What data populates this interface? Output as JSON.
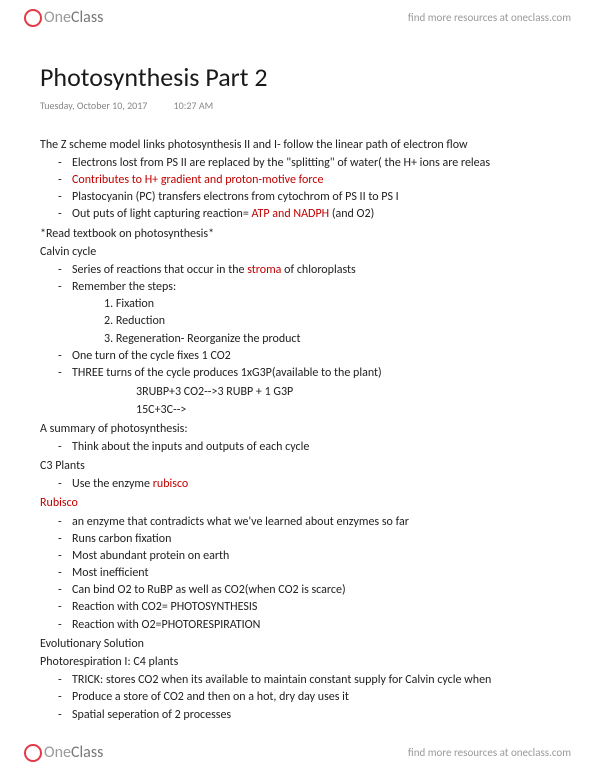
{
  "brand": {
    "logo_prefix": "One",
    "logo_suffix": "Class",
    "resources_text": "find more resources at oneclass.com"
  },
  "doc": {
    "title": "Photosynthesis Part 2",
    "date": "Tuesday, October 10, 2017",
    "time": "10:27 AM"
  },
  "colors": {
    "highlight": "#c00000",
    "text": "#222222",
    "meta": "#888888",
    "logo_accent": "#e63946"
  },
  "body": {
    "intro": "The Z scheme model links photosynthesis II and I- follow the linear path of electron flow",
    "intro_bullets": [
      {
        "text": "Electrons lost from PS II are replaced by the \"splitting\" of water( the H+ ions are releas",
        "red": false
      },
      {
        "text": "Contributes to H+ gradient and proton-motive force",
        "red": true
      },
      {
        "text": "Plastocyanin (PC) transfers electrons from cytochrom of PS II to PS I",
        "red": false
      },
      {
        "text": "Out puts of light capturing reaction= ",
        "red": false,
        "suffix_red": "ATP and NADPH",
        "suffix_plain": " (and O2)"
      }
    ],
    "read_note": "*Read textbook on photosynthesis*",
    "calvin_heading": "Calvin cycle",
    "calvin_b1_pre": "Series of reactions that occur in the ",
    "calvin_b1_red": "stroma",
    "calvin_b1_post": " of chloroplasts",
    "calvin_b2": "Remember the steps:",
    "calvin_steps": [
      "1. Fixation",
      "2. Reduction",
      "3. Regeneration- Reorganize the product"
    ],
    "calvin_b3": "One turn of the cycle fixes 1 CO2",
    "calvin_b4": "THREE turns of the cycle produces 1xG3P(available to the plant)",
    "calvin_eq1": "3RUBP+3 CO2-->3 RUBP + 1 G3P",
    "calvin_eq2": "15C+3C-->",
    "summary_heading": "A summary of photosynthesis:",
    "summary_b1": "Think about the inputs and outputs of each cycle",
    "c3_heading": "C3 Plants",
    "c3_b1_pre": "Use the enzyme ",
    "c3_b1_red": "rubisco",
    "rubisco_heading": "Rubisco",
    "rubisco_bullets": [
      "an enzyme that contradicts what we've learned about enzymes so far",
      "Runs carbon fixation",
      "Most abundant protein on earth",
      "Most inefficient",
      "Can bind O2 to RuBP as well as CO2(when CO2 is scarce)",
      "Reaction with CO2= PHOTOSYNTHESIS",
      "Reaction with O2=PHOTORESPIRATION"
    ],
    "evo_heading": "Evolutionary Solution",
    "photoresp_heading": "Photorespiration I: C4 plants",
    "photoresp_bullets": [
      "TRICK: stores CO2 when its available to maintain constant supply for Calvin cycle when",
      "Produce a store of CO2 and then on a hot, dry day uses it",
      "Spatial seperation of 2 processes"
    ]
  }
}
